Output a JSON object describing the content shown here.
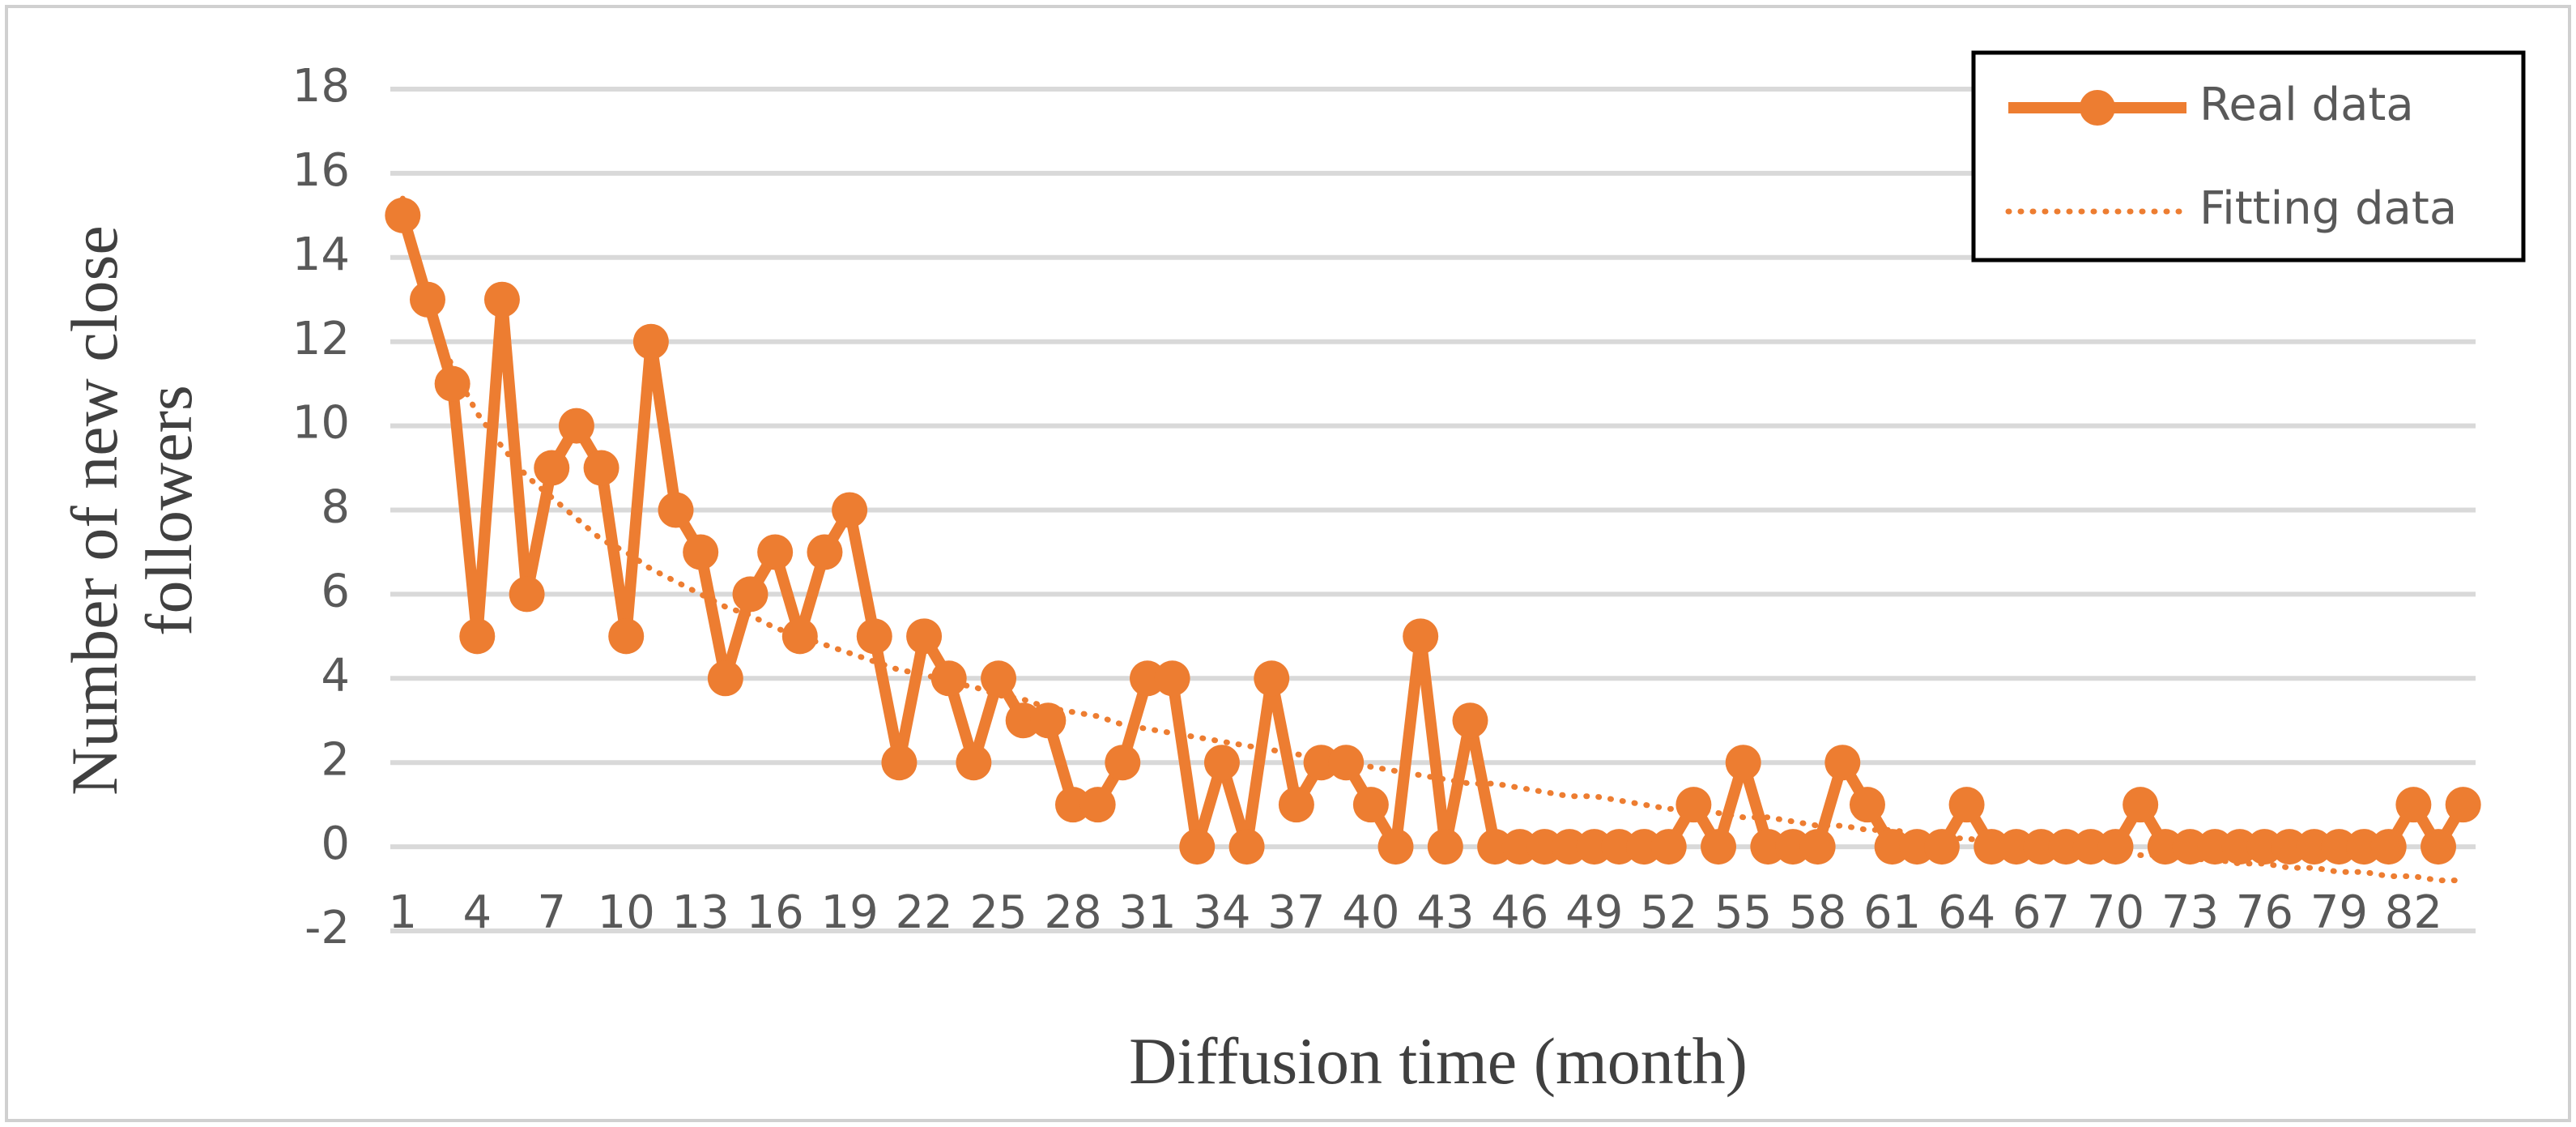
{
  "chart_data": {
    "type": "line",
    "x_label": "Diffusion time (month)",
    "y_label": "Number of new close followers",
    "categories": [
      1,
      null,
      null,
      4,
      null,
      null,
      7,
      null,
      null,
      10,
      null,
      null,
      13,
      null,
      null,
      16,
      null,
      null,
      19,
      null,
      null,
      22,
      null,
      null,
      25,
      null,
      null,
      28,
      null,
      null,
      31,
      null,
      null,
      34,
      null,
      null,
      37,
      null,
      null,
      40,
      null,
      null,
      43,
      null,
      null,
      46,
      null,
      null,
      49,
      null,
      null,
      52,
      null,
      null,
      55,
      null,
      null,
      58,
      null,
      null,
      61,
      null,
      null,
      64,
      null,
      null,
      67,
      null,
      null,
      70,
      null,
      null,
      73,
      null,
      null,
      76,
      null,
      null,
      79,
      null,
      null,
      82,
      null,
      null
    ],
    "series": [
      {
        "name": "Real data",
        "color": "#ED7D31",
        "style": "solid-markers",
        "values": [
          15,
          13,
          11,
          5,
          13,
          6,
          9,
          10,
          9,
          5,
          12,
          8,
          7,
          4,
          6,
          7,
          5,
          7,
          8,
          5,
          2,
          5,
          4,
          2,
          4,
          3,
          3,
          1,
          1,
          2,
          4,
          4,
          0,
          2,
          0,
          4,
          1,
          2,
          2,
          1,
          0,
          5,
          0,
          3,
          0,
          0,
          0,
          0,
          0,
          0,
          0,
          0,
          1,
          0,
          2,
          0,
          0,
          0,
          2,
          1,
          0,
          0,
          0,
          1,
          0,
          0,
          0,
          0,
          0,
          0,
          1,
          0,
          0,
          0,
          0,
          0,
          0,
          0,
          0,
          0,
          0,
          1,
          0,
          1
        ]
      },
      {
        "name": "Fitting data",
        "color": "#ED7D31",
        "style": "dotted",
        "values": [
          15.4,
          12.8,
          11.4,
          10.3,
          9.5,
          8.8,
          8.3,
          7.8,
          7.3,
          7.0,
          6.6,
          6.3,
          6.0,
          5.7,
          5.5,
          5.2,
          5.0,
          4.8,
          4.6,
          4.4,
          4.2,
          4.1,
          3.9,
          3.8,
          3.6,
          3.5,
          3.3,
          3.2,
          3.1,
          2.9,
          2.8,
          2.7,
          2.6,
          2.5,
          2.4,
          2.3,
          2.2,
          2.1,
          2.0,
          1.9,
          1.8,
          1.7,
          1.6,
          1.5,
          1.5,
          1.4,
          1.3,
          1.2,
          1.2,
          1.1,
          1.0,
          0.9,
          0.9,
          0.8,
          0.7,
          0.7,
          0.6,
          0.5,
          0.5,
          0.4,
          0.4,
          0.3,
          0.2,
          0.2,
          0.1,
          0.1,
          0.0,
          -0.04,
          -0.1,
          -0.1,
          -0.2,
          -0.2,
          -0.3,
          -0.3,
          -0.4,
          -0.4,
          -0.5,
          -0.5,
          -0.6,
          -0.6,
          -0.7,
          -0.7,
          -0.8,
          -0.8
        ]
      }
    ],
    "ylim": [
      -2,
      18
    ],
    "yticks": [
      -2,
      0,
      2,
      4,
      6,
      8,
      10,
      12,
      14,
      16,
      18
    ],
    "grid": true,
    "legend": "upper right"
  }
}
